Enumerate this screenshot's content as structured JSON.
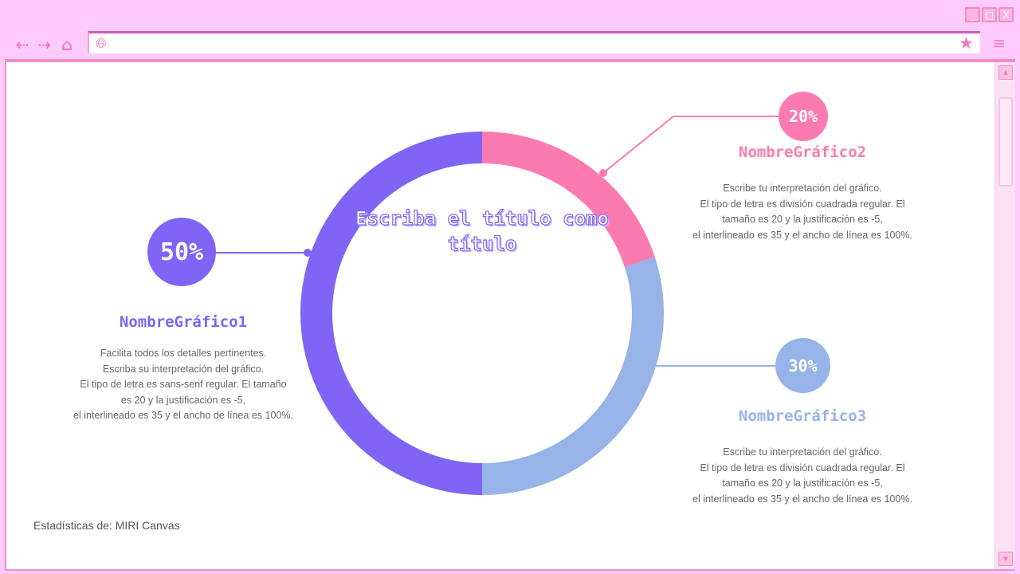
{
  "browser": {
    "window_buttons": [
      "_",
      "□",
      "X"
    ],
    "url": ""
  },
  "chart_data": {
    "type": "pie",
    "variant": "donut",
    "title": "Escriba el título como título",
    "categories": [
      "NombreGráfico1",
      "NombreGráfico2",
      "NombreGráfico3"
    ],
    "values": [
      50,
      20,
      30
    ],
    "labels": [
      "50%",
      "20%",
      "30%"
    ],
    "colors": [
      "#8064f5",
      "#fb7bb0",
      "#97b4e8"
    ]
  },
  "items": [
    {
      "name": "NombreGráfico1",
      "pct": "50%",
      "desc": [
        "Facilita todos los detalles pertinentes.",
        "Escriba su interpretación del gráfico.",
        "El tipo de letra es sans-serif regular. El tamaño",
        "es 20 y la justificación es -5,",
        "el interlineado es 35 y el ancho de línea es 100%."
      ]
    },
    {
      "name": "NombreGráfico2",
      "pct": "20%",
      "desc": [
        "Escribe tu interpretación del gráfico.",
        "El tipo de letra es división cuadrada regular. El",
        "tamaño es 20 y la justificación es -5,",
        "el interlineado es 35 y el ancho de línea es 100%."
      ]
    },
    {
      "name": "NombreGráfico3",
      "pct": "30%",
      "desc": [
        "Escribe tu interpretación del gráfico.",
        "El tipo de letra es división cuadrada regular. El",
        "tamaño es 20 y la justificación es -5,",
        "el interlineado es 35 y el ancho de línea es 100%."
      ]
    }
  ],
  "footer": "Estadísticas de: MIRI Canvas"
}
